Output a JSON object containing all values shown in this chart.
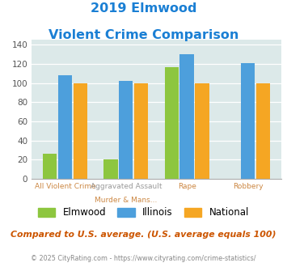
{
  "title_line1": "2019 Elmwood",
  "title_line2": "Violent Crime Comparison",
  "series": {
    "Elmwood": [
      26,
      20,
      117,
      0
    ],
    "Illinois": [
      108,
      102,
      130,
      121
    ],
    "National": [
      100,
      100,
      100,
      100
    ]
  },
  "colors": {
    "Elmwood": "#8dc63f",
    "Illinois": "#4d9fdc",
    "National": "#f5a623"
  },
  "ylim": [
    0,
    145
  ],
  "yticks": [
    0,
    20,
    40,
    60,
    80,
    100,
    120,
    140
  ],
  "plot_bg": "#dce9e9",
  "title_color": "#1a7fd4",
  "cat_labels_top": [
    "",
    "Aggravated Assault",
    "",
    ""
  ],
  "cat_labels_bottom": [
    "All Violent Crime",
    "Murder & Mans...",
    "Rape",
    "Robbery"
  ],
  "footer_note": "Compared to U.S. average. (U.S. average equals 100)",
  "footer_url": "© 2025 CityRating.com - https://www.cityrating.com/crime-statistics/",
  "legend_labels": [
    "Elmwood",
    "Illinois",
    "National"
  ],
  "bar_width": 0.25
}
